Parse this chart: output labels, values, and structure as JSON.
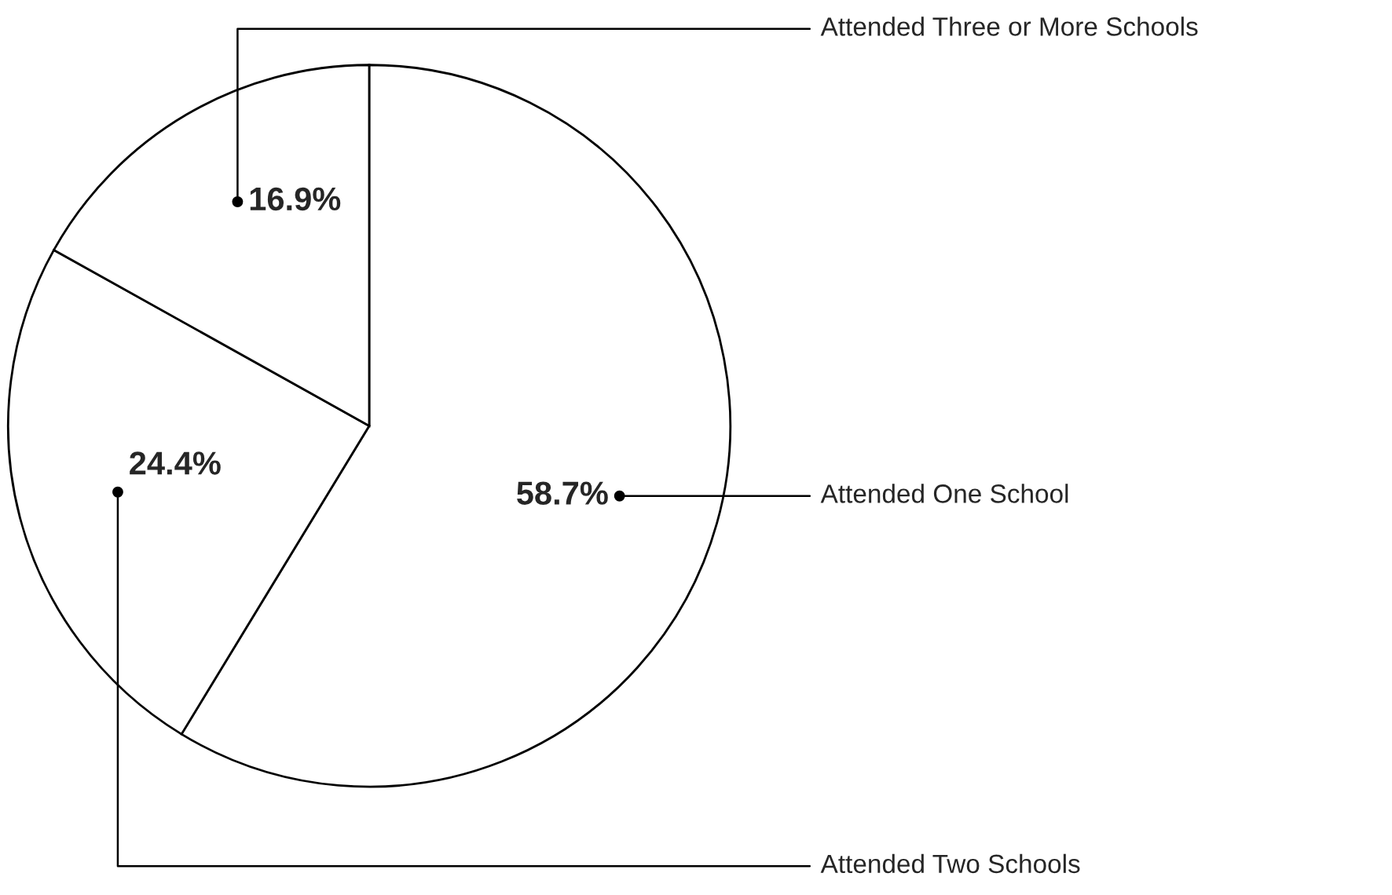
{
  "chart_data": {
    "type": "pie",
    "categories": [
      "Attended One School",
      "Attended Two Schools",
      "Attended Three or More Schools"
    ],
    "values": [
      58.7,
      24.4,
      16.9
    ],
    "colors": [
      "#ffffff",
      "#ffffff",
      "#ffffff"
    ],
    "value_labels": [
      "58.7%",
      "24.4%",
      "16.9%"
    ]
  }
}
